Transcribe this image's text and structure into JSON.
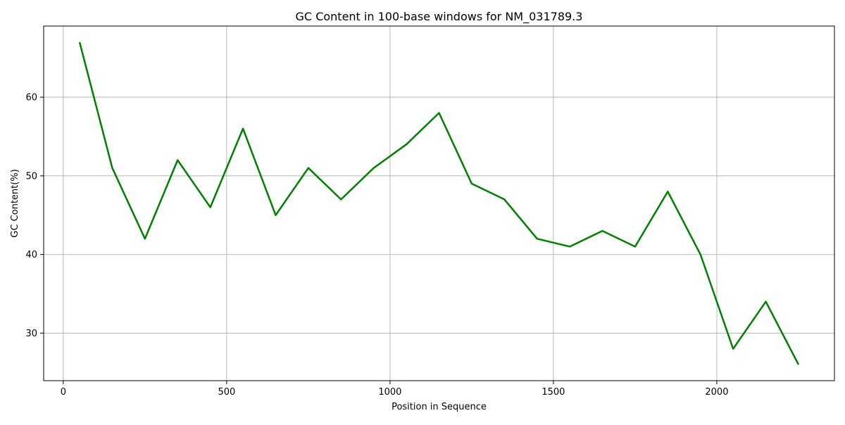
{
  "chart_data": {
    "type": "line",
    "title": "GC Content in 100-base windows for NM_031789.3",
    "xlabel": "Position in Sequence",
    "ylabel": "GC Content(%)",
    "xlim": [
      -60,
      2360
    ],
    "ylim": [
      23.95,
      69.05
    ],
    "xticks": [
      0,
      500,
      1000,
      1500,
      2000
    ],
    "yticks": [
      30,
      40,
      50,
      60
    ],
    "grid": true,
    "legend": "none",
    "line_color": "#008000",
    "series": [
      {
        "x": [
          50,
          150,
          250,
          350,
          450,
          550,
          650,
          750,
          850,
          950,
          1050,
          1150,
          1250,
          1350,
          1450,
          1550,
          1650,
          1750,
          1850,
          1950,
          2050,
          2150,
          2250
        ],
        "values": [
          67,
          51,
          42,
          52,
          46,
          56,
          45,
          51,
          47,
          51,
          54,
          58,
          49,
          47,
          42,
          41,
          43,
          41,
          48,
          40,
          28,
          34,
          26
        ]
      }
    ]
  }
}
